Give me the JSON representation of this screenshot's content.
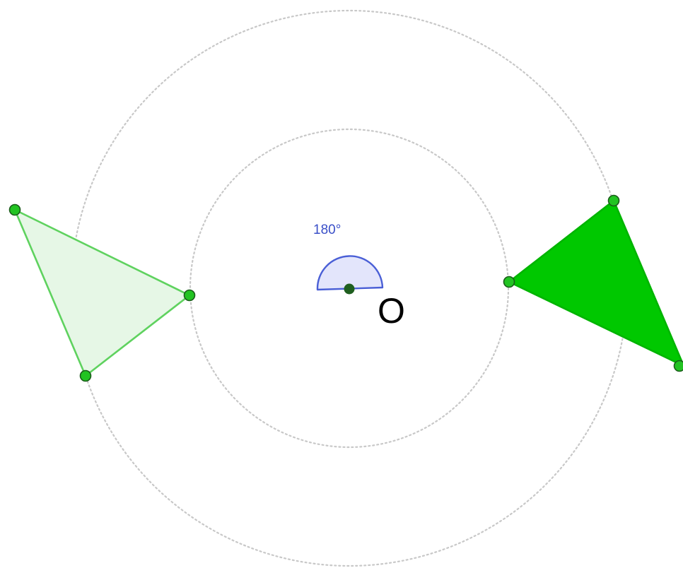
{
  "diagram": {
    "center_label": "O",
    "angle_label": "180°"
  },
  "colors": {
    "original_fill": "#e6f7e6",
    "original_stroke": "#5fd25f",
    "image_fill": "#00c800",
    "image_stroke": "#00b400",
    "point_fill": "#22c322",
    "center_point": "#1f5f1f",
    "angle_fill": "#e3e5fb",
    "angle_stroke": "#4a5fd6",
    "angle_text": "#3a4fc8",
    "guide_circle": "#c8c8c8",
    "label_text": "#000000"
  }
}
